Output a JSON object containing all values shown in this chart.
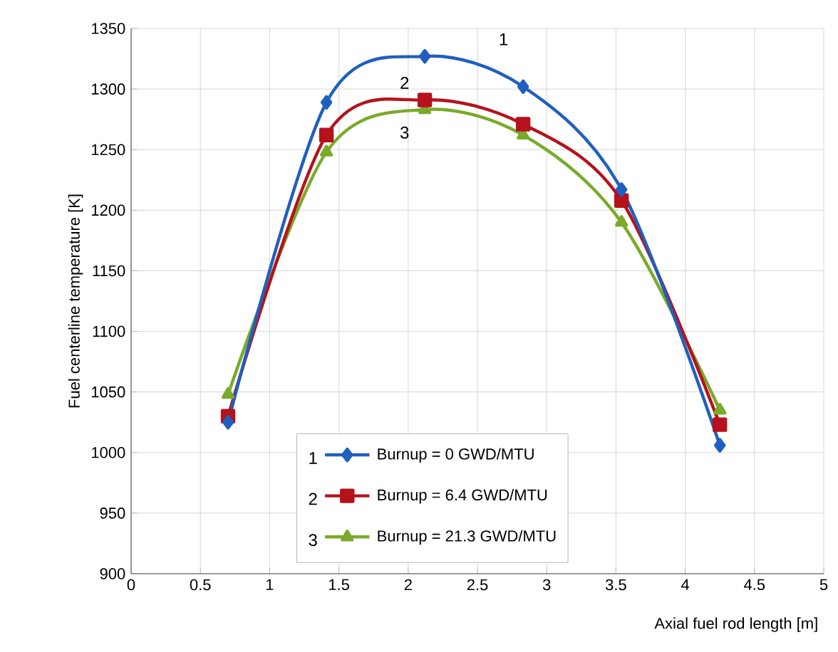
{
  "chart_data": {
    "type": "line",
    "xlabel": "Axial fuel rod length [m]",
    "ylabel": "Fuel centerline temperature [K]",
    "xlim": [
      0,
      5
    ],
    "ylim": [
      900,
      1350
    ],
    "xticks": [
      0,
      0.5,
      1,
      1.5,
      2,
      2.5,
      3,
      3.5,
      4,
      4.5,
      5
    ],
    "yticks": [
      900,
      950,
      1000,
      1050,
      1100,
      1150,
      1200,
      1250,
      1300,
      1350
    ],
    "grid": true,
    "legend": "bottom",
    "line_style": "solid",
    "series": [
      {
        "name": "Burnup = 0 GWD/MTU",
        "color": "#1f5fbf",
        "marker": "diamond",
        "x": [
          0.7,
          1.41,
          2.12,
          2.83,
          3.54,
          4.25
        ],
        "values": [
          1025,
          1289,
          1327,
          1302,
          1217,
          1006
        ]
      },
      {
        "name": "Burnup = 6.4 GWD/MTU",
        "color": "#b5121b",
        "marker": "square",
        "x": [
          0.7,
          1.41,
          2.12,
          2.83,
          3.54,
          4.25
        ],
        "values": [
          1030,
          1262,
          1291,
          1271,
          1208,
          1023
        ]
      },
      {
        "name": "Burnup = 21.3 GWD/MTU",
        "color": "#7aaa2a",
        "marker": "triangle",
        "x": [
          0.7,
          1.41,
          2.12,
          2.83,
          3.54,
          4.25
        ],
        "values": [
          1048,
          1248,
          1283,
          1262,
          1190,
          1035
        ]
      }
    ],
    "annotations": [
      "1",
      "2",
      "3"
    ]
  }
}
